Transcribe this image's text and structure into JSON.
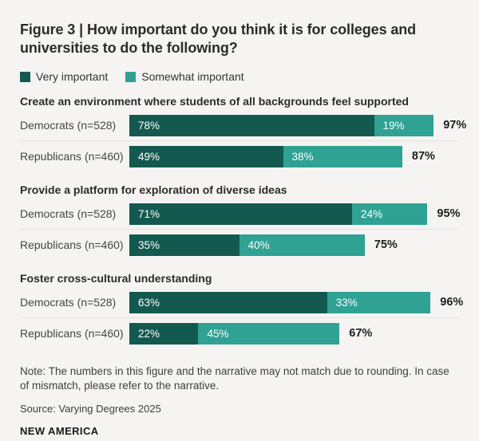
{
  "figure": {
    "title": "Figure 3 | How important do you think it is for colleges and universities to do the following?",
    "note": "Note: The numbers in this figure and the narrative may not match due to rounding. In case of mismatch, please refer to the narrative.",
    "source": "Source: Varying Degrees 2025",
    "brand": "NEW AMERICA"
  },
  "legend": [
    {
      "label": "Very important",
      "color": "#14594F"
    },
    {
      "label": "Somewhat important",
      "color": "#2FA294"
    }
  ],
  "colors": {
    "background": "#F5F4F2",
    "very_important": "#14594F",
    "somewhat_important": "#2FA294",
    "divider": "#E3E1DE"
  },
  "chart_data": {
    "type": "bar",
    "subtype": "horizontal-stacked",
    "unit": "percent",
    "xlim": [
      0,
      100
    ],
    "grid": false,
    "legend_position": "top-left",
    "series_names": [
      "Very important",
      "Somewhat important"
    ],
    "colors": {
      "very_important": "#14594F",
      "somewhat_important": "#2FA294"
    },
    "sections": [
      {
        "heading": "Create an environment where students of all backgrounds feel supported",
        "rows": [
          {
            "label": "Democrats (n=528)",
            "values": [
              78,
              19
            ],
            "value_labels": [
              "78%",
              "19%"
            ],
            "total": 97,
            "total_label": "97%"
          },
          {
            "label": "Republicans (n=460)",
            "values": [
              49,
              38
            ],
            "value_labels": [
              "49%",
              "38%"
            ],
            "total": 87,
            "total_label": "87%"
          }
        ]
      },
      {
        "heading": "Provide a platform for exploration of diverse ideas",
        "rows": [
          {
            "label": "Democrats (n=528)",
            "values": [
              71,
              24
            ],
            "value_labels": [
              "71%",
              "24%"
            ],
            "total": 95,
            "total_label": "95%"
          },
          {
            "label": "Republicans (n=460)",
            "values": [
              35,
              40
            ],
            "value_labels": [
              "35%",
              "40%"
            ],
            "total": 75,
            "total_label": "75%"
          }
        ]
      },
      {
        "heading": "Foster cross-cultural understanding",
        "rows": [
          {
            "label": "Democrats (n=528)",
            "values": [
              63,
              33
            ],
            "value_labels": [
              "63%",
              "33%"
            ],
            "total": 96,
            "total_label": "96%"
          },
          {
            "label": "Republicans (n=460)",
            "values": [
              22,
              45
            ],
            "value_labels": [
              "22%",
              "45%"
            ],
            "total": 67,
            "total_label": "67%"
          }
        ]
      }
    ]
  }
}
